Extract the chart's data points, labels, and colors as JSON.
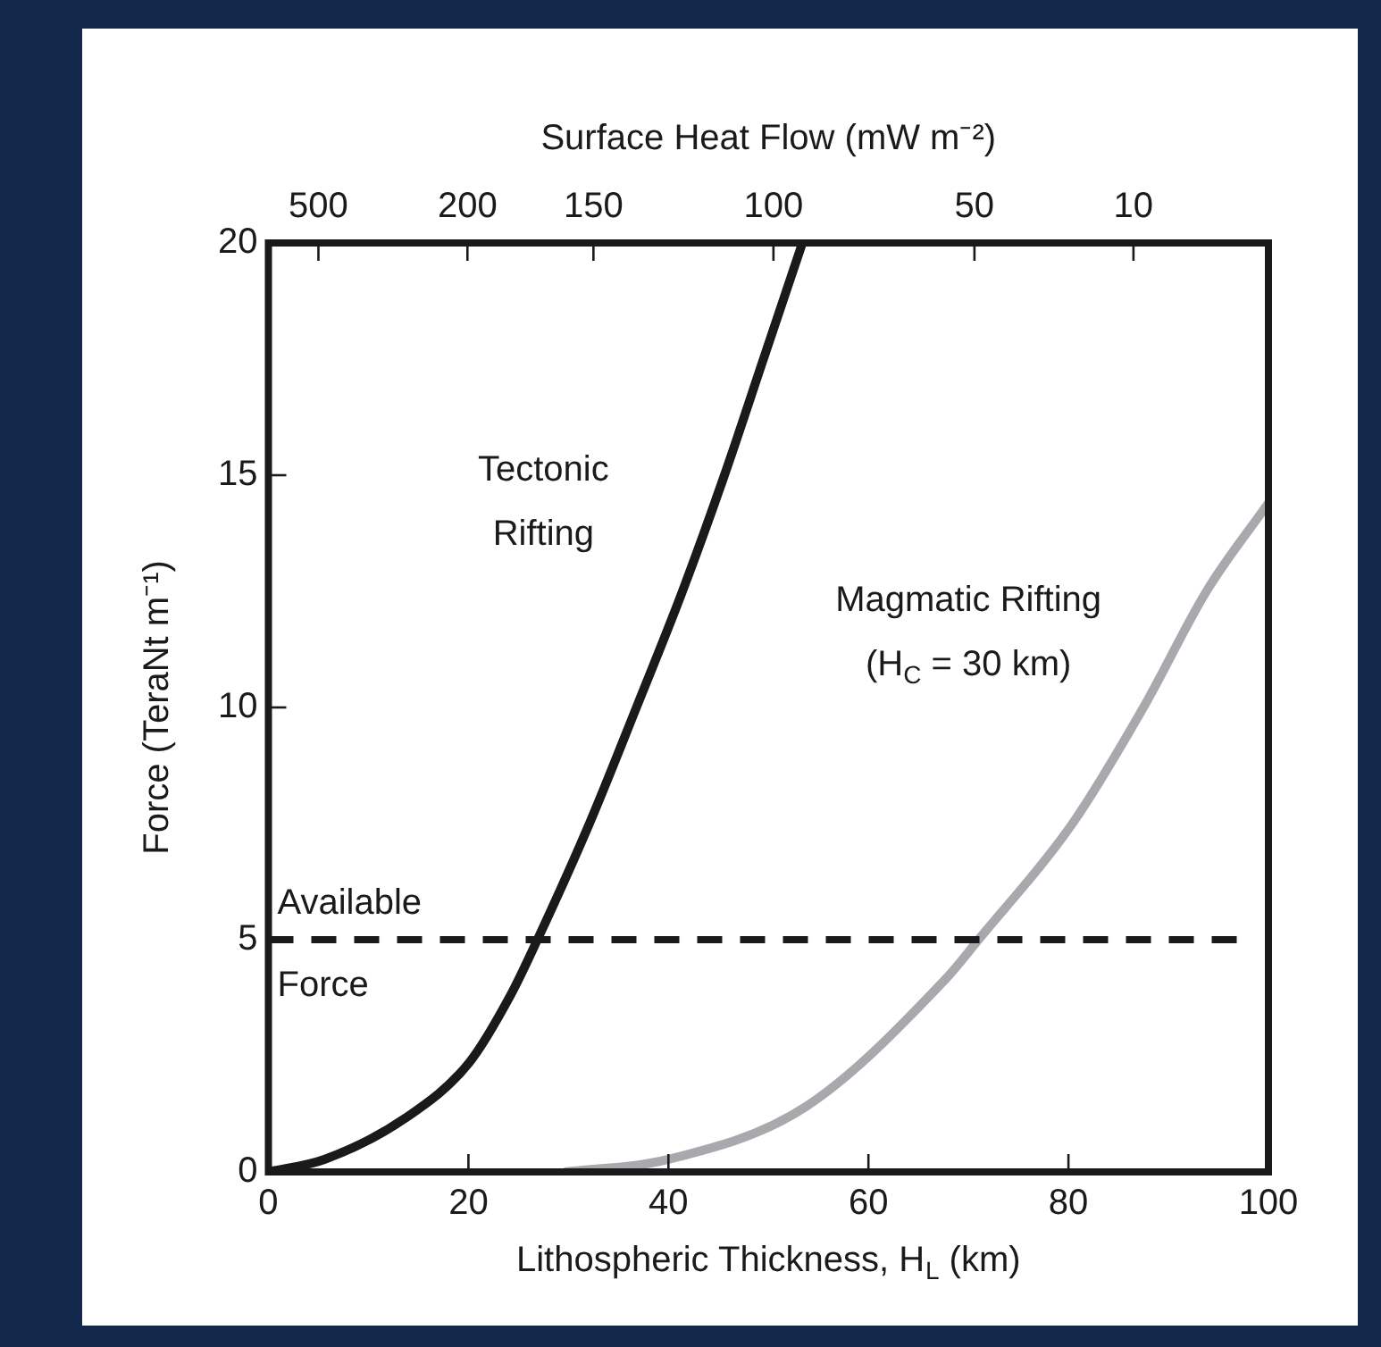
{
  "chart_data": {
    "type": "line",
    "xlabel": "Lithospheric Thickness, H$_{L}$ (km)",
    "ylabel": "Force (TeraNt m⁻¹)",
    "x2label": "Surface Heat Flow (mW m⁻²)",
    "xlim": [
      0,
      100
    ],
    "xticks": [
      0,
      20,
      40,
      60,
      80,
      100
    ],
    "ylim": [
      0,
      20
    ],
    "yticks": [
      0,
      5,
      10,
      15,
      20
    ],
    "annotations": [
      "500",
      "200",
      "150",
      "100",
      "50",
      "10"
    ],
    "series": [
      {
        "name": "Tectonic Rifting",
        "color": "#1a1a1a",
        "x": [
          0,
          5.6,
          13.7,
          20.1,
          24.2,
          26.9,
          32.1,
          36.8,
          41.4,
          45.6,
          49.5,
          53.4
        ],
        "values": [
          0,
          0.27,
          1.16,
          2.36,
          3.8,
          5,
          7.5,
          10,
          12.5,
          15,
          17.5,
          20
        ]
      },
      {
        "name": "Magmatic Rifting (H$_{C}$ = 30 km)",
        "color": "#a7a9ac",
        "x": [
          29.6,
          40,
          53.7,
          67.7,
          71,
          80.4,
          87.5,
          93.8,
          100
        ],
        "values": [
          0,
          0.27,
          1.4,
          4.15,
          5,
          7.5,
          10,
          12.5,
          14.4
        ]
      }
    ],
    "ref_lines": [
      {
        "axis": "y",
        "value": 5,
        "label": "Available Force",
        "color": "#1a1a1a",
        "line_style": "dashed"
      }
    ],
    "legend": false,
    "marker": "none",
    "line_style": "solid"
  }
}
